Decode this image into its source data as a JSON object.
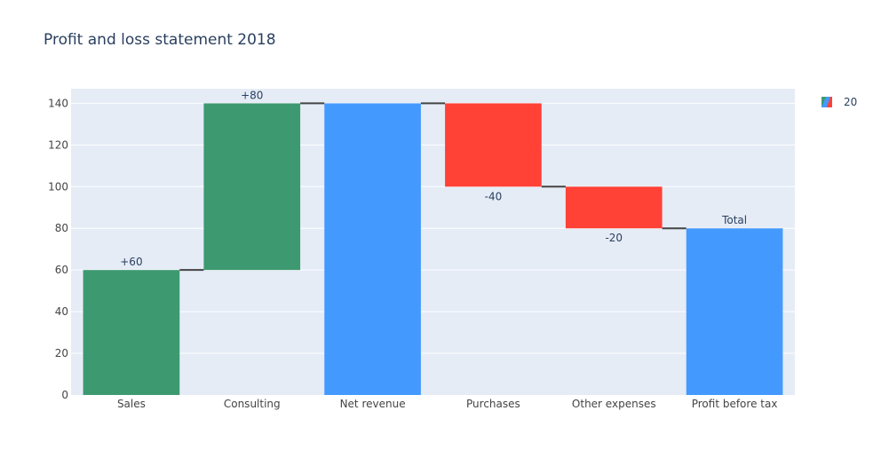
{
  "chart_data": {
    "type": "waterfall",
    "title": "Profit and loss statement 2018",
    "categories": [
      "Sales",
      "Consulting",
      "Net revenue",
      "Purchases",
      "Other expenses",
      "Profit before tax"
    ],
    "measure": [
      "relative",
      "relative",
      "total",
      "relative",
      "relative",
      "total"
    ],
    "values": [
      60,
      80,
      140,
      -40,
      -20,
      80
    ],
    "text": [
      "+60",
      "+80",
      "",
      "-40",
      "-20",
      "Total"
    ],
    "ylim": [
      0,
      147
    ],
    "yticks": [
      0,
      20,
      40,
      60,
      80,
      100,
      120,
      140
    ],
    "grid": true,
    "legend": {
      "name": "20",
      "placement": "top-right"
    },
    "colors": {
      "increasing": "#3d9970",
      "decreasing": "#ff4136",
      "total": "#4499ff",
      "connector": "#444444",
      "plot_bg": "#e5ecf6",
      "grid": "#ffffff",
      "text": "#2a3f5f",
      "tick_text": "#444444"
    }
  }
}
